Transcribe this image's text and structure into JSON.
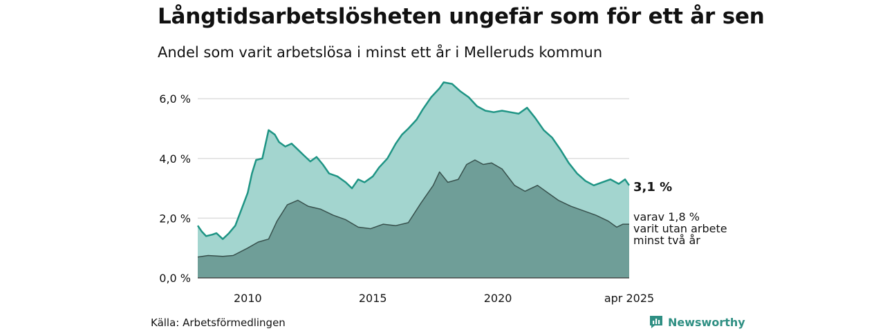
{
  "title": "Långtidsarbetslösheten ungefär som för ett år sen",
  "subtitle": "Andel som varit arbetslösa i minst ett år i Melleruds kommun",
  "source": "Källa: Arbetsförmedlingen",
  "brand": "Newsworthy",
  "colors": {
    "total_fill": "#a3d5cf",
    "total_line": "#1e9484",
    "long_fill": "#6f9e98",
    "long_line": "#37504c",
    "grid": "#dddddd",
    "brand": "#2f8f83"
  },
  "icons": [
    "newsworthy-logo-icon"
  ],
  "chart_data": {
    "type": "area",
    "x_ticks": [
      "2010",
      "2015",
      "2020",
      "apr 2025"
    ],
    "y_ticks": [
      "0,0 %",
      "2,0 %",
      "4,0 %",
      "6,0 %"
    ],
    "ylim": [
      0,
      6.5
    ],
    "xlim": [
      "2008-01",
      "2025-04"
    ],
    "grid": "horizontal",
    "end_labels": {
      "total": "3,1 %",
      "long_line1": "varav 1,8 %",
      "long_line2": "varit utan arbete",
      "long_line3": "minst två år"
    },
    "series": [
      {
        "key": "total",
        "points": [
          [
            "2008-01",
            1.75
          ],
          [
            "2008-03",
            1.55
          ],
          [
            "2008-05",
            1.4
          ],
          [
            "2008-08",
            1.45
          ],
          [
            "2008-10",
            1.5
          ],
          [
            "2009-01",
            1.3
          ],
          [
            "2009-04",
            1.5
          ],
          [
            "2009-07",
            1.75
          ],
          [
            "2009-10",
            2.3
          ],
          [
            "2010-01",
            2.85
          ],
          [
            "2010-03",
            3.5
          ],
          [
            "2010-05",
            3.95
          ],
          [
            "2010-08",
            4.0
          ],
          [
            "2010-11",
            4.95
          ],
          [
            "2011-02",
            4.8
          ],
          [
            "2011-04",
            4.55
          ],
          [
            "2011-07",
            4.4
          ],
          [
            "2011-10",
            4.5
          ],
          [
            "2012-01",
            4.3
          ],
          [
            "2012-04",
            4.1
          ],
          [
            "2012-07",
            3.9
          ],
          [
            "2012-10",
            4.05
          ],
          [
            "2013-01",
            3.8
          ],
          [
            "2013-04",
            3.5
          ],
          [
            "2013-08",
            3.4
          ],
          [
            "2013-12",
            3.2
          ],
          [
            "2014-03",
            3.0
          ],
          [
            "2014-06",
            3.3
          ],
          [
            "2014-09",
            3.2
          ],
          [
            "2015-01",
            3.4
          ],
          [
            "2015-04",
            3.7
          ],
          [
            "2015-08",
            4.0
          ],
          [
            "2015-12",
            4.5
          ],
          [
            "2016-03",
            4.8
          ],
          [
            "2016-06",
            5.0
          ],
          [
            "2016-10",
            5.3
          ],
          [
            "2017-01",
            5.65
          ],
          [
            "2017-05",
            6.05
          ],
          [
            "2017-09",
            6.35
          ],
          [
            "2017-11",
            6.55
          ],
          [
            "2018-03",
            6.5
          ],
          [
            "2018-07",
            6.25
          ],
          [
            "2018-11",
            6.05
          ],
          [
            "2019-03",
            5.75
          ],
          [
            "2019-07",
            5.6
          ],
          [
            "2019-11",
            5.55
          ],
          [
            "2020-03",
            5.6
          ],
          [
            "2020-07",
            5.55
          ],
          [
            "2020-11",
            5.5
          ],
          [
            "2021-03",
            5.7
          ],
          [
            "2021-07",
            5.35
          ],
          [
            "2021-11",
            4.95
          ],
          [
            "2022-03",
            4.7
          ],
          [
            "2022-07",
            4.3
          ],
          [
            "2022-11",
            3.85
          ],
          [
            "2023-03",
            3.5
          ],
          [
            "2023-07",
            3.25
          ],
          [
            "2023-11",
            3.1
          ],
          [
            "2024-03",
            3.2
          ],
          [
            "2024-07",
            3.3
          ],
          [
            "2024-11",
            3.15
          ],
          [
            "2025-02",
            3.3
          ],
          [
            "2025-04",
            3.1
          ]
        ]
      },
      {
        "key": "long",
        "points": [
          [
            "2008-01",
            0.7
          ],
          [
            "2008-06",
            0.75
          ],
          [
            "2009-01",
            0.72
          ],
          [
            "2009-06",
            0.75
          ],
          [
            "2010-01",
            1.0
          ],
          [
            "2010-06",
            1.2
          ],
          [
            "2010-11",
            1.3
          ],
          [
            "2011-03",
            1.9
          ],
          [
            "2011-08",
            2.45
          ],
          [
            "2012-01",
            2.6
          ],
          [
            "2012-06",
            2.4
          ],
          [
            "2012-12",
            2.3
          ],
          [
            "2013-06",
            2.1
          ],
          [
            "2013-12",
            1.95
          ],
          [
            "2014-06",
            1.7
          ],
          [
            "2014-12",
            1.65
          ],
          [
            "2015-06",
            1.8
          ],
          [
            "2015-12",
            1.75
          ],
          [
            "2016-06",
            1.85
          ],
          [
            "2016-12",
            2.5
          ],
          [
            "2017-06",
            3.1
          ],
          [
            "2017-09",
            3.55
          ],
          [
            "2018-01",
            3.2
          ],
          [
            "2018-06",
            3.3
          ],
          [
            "2018-10",
            3.8
          ],
          [
            "2019-02",
            3.95
          ],
          [
            "2019-06",
            3.8
          ],
          [
            "2019-10",
            3.85
          ],
          [
            "2020-03",
            3.65
          ],
          [
            "2020-09",
            3.1
          ],
          [
            "2021-02",
            2.9
          ],
          [
            "2021-08",
            3.1
          ],
          [
            "2022-01",
            2.85
          ],
          [
            "2022-06",
            2.6
          ],
          [
            "2022-12",
            2.4
          ],
          [
            "2023-06",
            2.25
          ],
          [
            "2023-12",
            2.1
          ],
          [
            "2024-06",
            1.9
          ],
          [
            "2024-10",
            1.7
          ],
          [
            "2025-01",
            1.8
          ],
          [
            "2025-04",
            1.8
          ]
        ]
      }
    ]
  }
}
